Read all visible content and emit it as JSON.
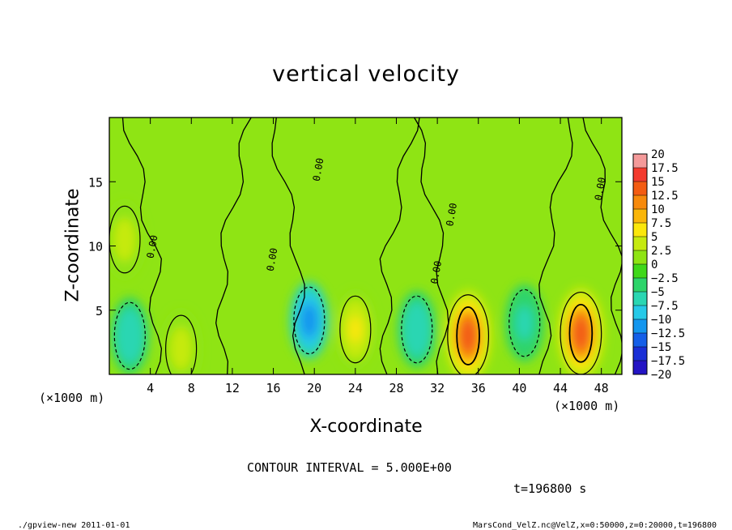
{
  "chart_data": {
    "type": "heatmap",
    "title": "vertical velocity",
    "xlabel": "X-coordinate",
    "ylabel": "Z-coordinate",
    "x_unit_label": "(×1000 m)",
    "x_unit_label_right": "(×1000 m)",
    "xlim": [
      0,
      50
    ],
    "ylim": [
      0,
      20
    ],
    "x_ticks": [
      "4",
      "8",
      "12",
      "16",
      "20",
      "24",
      "28",
      "32",
      "36",
      "40",
      "44",
      "48"
    ],
    "x_tick_values": [
      4,
      8,
      12,
      16,
      20,
      24,
      28,
      32,
      36,
      40,
      44,
      48
    ],
    "y_ticks": [
      "5",
      "10",
      "15"
    ],
    "y_tick_values": [
      5,
      10,
      15
    ],
    "colorbar": {
      "labels": [
        "20",
        "17.5",
        "15",
        "12.5",
        "10",
        "7.5",
        "5",
        "2.5",
        "0",
        "−2.5",
        "−5",
        "−7.5",
        "−10",
        "−12.5",
        "−15",
        "−17.5",
        "−20"
      ],
      "levels": [
        20,
        17.5,
        15,
        12.5,
        10,
        7.5,
        5,
        2.5,
        0,
        -2.5,
        -5,
        -7.5,
        -10,
        -12.5,
        -15,
        -17.5,
        -20
      ],
      "colors": [
        "#f49a9a",
        "#f33a2e",
        "#f35c12",
        "#f78a0c",
        "#fab60a",
        "#fbe70c",
        "#c6ea10",
        "#8fe414",
        "#3fd81a",
        "#2dd46a",
        "#2ad6b2",
        "#26c9e8",
        "#1496ee",
        "#155fe8",
        "#1a2fd6",
        "#2414c4",
        "#5a10c0"
      ]
    },
    "contour_labels": [
      "0.00",
      "0.00",
      "0.00",
      "0.00",
      "0.00",
      "0.00"
    ],
    "features": [
      {
        "x": 35,
        "z": 3,
        "w": 14.5,
        "label": "updraft"
      },
      {
        "x": 46,
        "z": 3.2,
        "w": 14.0,
        "label": "updraft"
      },
      {
        "x": 24,
        "z": 3.5,
        "w": 7.0,
        "label": "updraft"
      },
      {
        "x": 1.5,
        "z": 10.5,
        "w": 6.0,
        "label": "updraft"
      },
      {
        "x": 7,
        "z": 2,
        "w": 5.5,
        "label": "updraft"
      },
      {
        "x": 19.5,
        "z": 4.2,
        "w": -10.0,
        "label": "downdraft"
      },
      {
        "x": 2,
        "z": 3,
        "w": -6.0,
        "label": "downdraft"
      },
      {
        "x": 30,
        "z": 3.5,
        "w": -5.5,
        "label": "downdraft"
      },
      {
        "x": 40.5,
        "z": 4,
        "w": -5.0,
        "label": "downdraft"
      }
    ],
    "grid": false,
    "legend": "right colorbar"
  },
  "annotations": {
    "contour_interval": "CONTOUR INTERVAL = 5.000E+00",
    "time": "t=196800 s",
    "footer_left": "./gpview-new   2011-01-01",
    "footer_right": "MarsCond_VelZ.nc@VelZ,x=0:50000,z=0:20000,t=196800"
  }
}
